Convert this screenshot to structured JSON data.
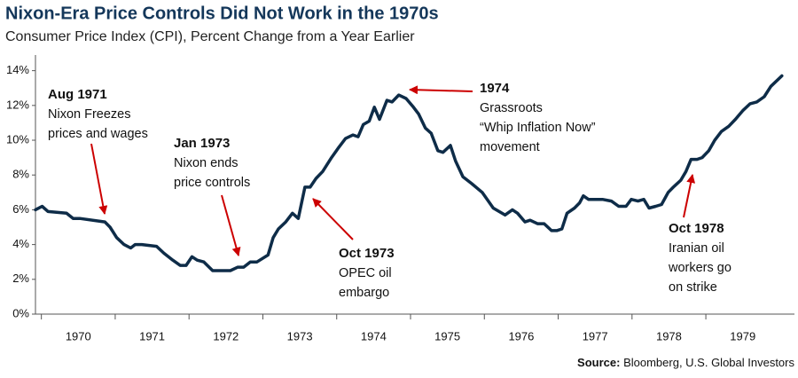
{
  "chart_data": {
    "type": "line",
    "title": "Nixon-Era Price Controls Did Not Work in the 1970s",
    "subtitle": "Consumer Price Index (CPI), Percent Change from a Year Earlier",
    "source_label": "Source:",
    "source": "Bloomberg, U.S. Global Investors",
    "xlim": [
      1969.92,
      1980.2
    ],
    "xticks": [
      {
        "value": 1970,
        "label": "1970"
      },
      {
        "value": 1971,
        "label": "1971"
      },
      {
        "value": 1972,
        "label": "1972"
      },
      {
        "value": 1973,
        "label": "1973"
      },
      {
        "value": 1974,
        "label": "1974"
      },
      {
        "value": 1975,
        "label": "1975"
      },
      {
        "value": 1976,
        "label": "1976"
      },
      {
        "value": 1977,
        "label": "1977"
      },
      {
        "value": 1978,
        "label": "1978"
      },
      {
        "value": 1979,
        "label": "1979"
      }
    ],
    "ylim": [
      0,
      14.9
    ],
    "yticks": [
      {
        "value": 0,
        "label": "0%"
      },
      {
        "value": 2,
        "label": "2%"
      },
      {
        "value": 4,
        "label": "4%"
      },
      {
        "value": 6,
        "label": "6%"
      },
      {
        "value": 8,
        "label": "8%"
      },
      {
        "value": 10,
        "label": "10%"
      },
      {
        "value": 12,
        "label": "12%"
      },
      {
        "value": 14,
        "label": "14%"
      }
    ],
    "grid": false,
    "series": [
      {
        "name": "CPI",
        "color": "#0e2c48",
        "x": [
          1969.92,
          1970.01,
          1970.09,
          1970.34,
          1970.43,
          1970.52,
          1970.86,
          1970.93,
          1971.02,
          1971.12,
          1971.21,
          1971.27,
          1971.36,
          1971.56,
          1971.66,
          1971.78,
          1971.88,
          1971.96,
          1972.04,
          1972.11,
          1972.2,
          1972.32,
          1972.56,
          1972.66,
          1972.74,
          1972.83,
          1972.92,
          1973.07,
          1973.14,
          1973.21,
          1973.31,
          1973.4,
          1973.48,
          1973.57,
          1973.64,
          1973.72,
          1973.81,
          1973.93,
          1974.03,
          1974.12,
          1974.22,
          1974.29,
          1974.36,
          1974.44,
          1974.51,
          1974.58,
          1974.68,
          1974.75,
          1974.84,
          1974.94,
          1975.04,
          1975.11,
          1975.2,
          1975.28,
          1975.37,
          1975.44,
          1975.54,
          1975.61,
          1975.71,
          1975.83,
          1975.97,
          1976.12,
          1976.28,
          1976.38,
          1976.45,
          1976.55,
          1976.62,
          1976.72,
          1976.81,
          1976.91,
          1976.98,
          1977.05,
          1977.12,
          1977.22,
          1977.29,
          1977.34,
          1977.41,
          1977.6,
          1977.72,
          1977.82,
          1977.92,
          1977.99,
          1978.08,
          1978.16,
          1978.23,
          1978.32,
          1978.4,
          1978.49,
          1978.56,
          1978.66,
          1978.73,
          1978.8,
          1978.88,
          1978.95,
          1979.04,
          1979.12,
          1979.21,
          1979.31,
          1979.4,
          1979.5,
          1979.6,
          1979.69,
          1979.79,
          1979.88,
          1980.03
        ],
        "values": [
          6.0,
          6.2,
          5.9,
          5.8,
          5.5,
          5.5,
          5.3,
          5.0,
          4.4,
          4.0,
          3.8,
          4.0,
          4.0,
          3.9,
          3.5,
          3.1,
          2.8,
          2.8,
          3.3,
          3.1,
          3.0,
          2.5,
          2.5,
          2.7,
          2.7,
          3.0,
          3.0,
          3.4,
          4.4,
          4.9,
          5.3,
          5.8,
          5.5,
          7.3,
          7.3,
          7.8,
          8.2,
          9.0,
          9.6,
          10.1,
          10.3,
          10.2,
          10.9,
          11.1,
          11.9,
          11.2,
          12.3,
          12.2,
          12.6,
          12.4,
          11.9,
          11.5,
          10.7,
          10.4,
          9.4,
          9.3,
          9.7,
          8.8,
          7.9,
          7.5,
          7.0,
          6.1,
          5.7,
          6.0,
          5.8,
          5.3,
          5.4,
          5.2,
          5.2,
          4.8,
          4.8,
          4.9,
          5.8,
          6.1,
          6.4,
          6.8,
          6.6,
          6.6,
          6.5,
          6.2,
          6.2,
          6.6,
          6.5,
          6.6,
          6.1,
          6.2,
          6.3,
          7.0,
          7.3,
          7.7,
          8.2,
          8.9,
          8.9,
          9.0,
          9.4,
          10.0,
          10.5,
          10.8,
          11.2,
          11.7,
          12.1,
          12.2,
          12.5,
          13.1,
          13.7
        ]
      }
    ],
    "annotations": [
      {
        "title": "Aug 1971",
        "lines": [
          "Nixon Freezes",
          "prices and wages"
        ]
      },
      {
        "title": "Jan 1973",
        "lines": [
          "Nixon ends",
          "price controls"
        ]
      },
      {
        "title": "Oct 1973",
        "lines": [
          "OPEC oil",
          "embargo"
        ]
      },
      {
        "title": "1974",
        "lines": [
          "Grassroots",
          "“Whip Inflation Now”",
          "movement"
        ]
      },
      {
        "title": "Oct 1978",
        "lines": [
          "Iranian oil",
          "workers go",
          "on strike"
        ]
      }
    ]
  }
}
